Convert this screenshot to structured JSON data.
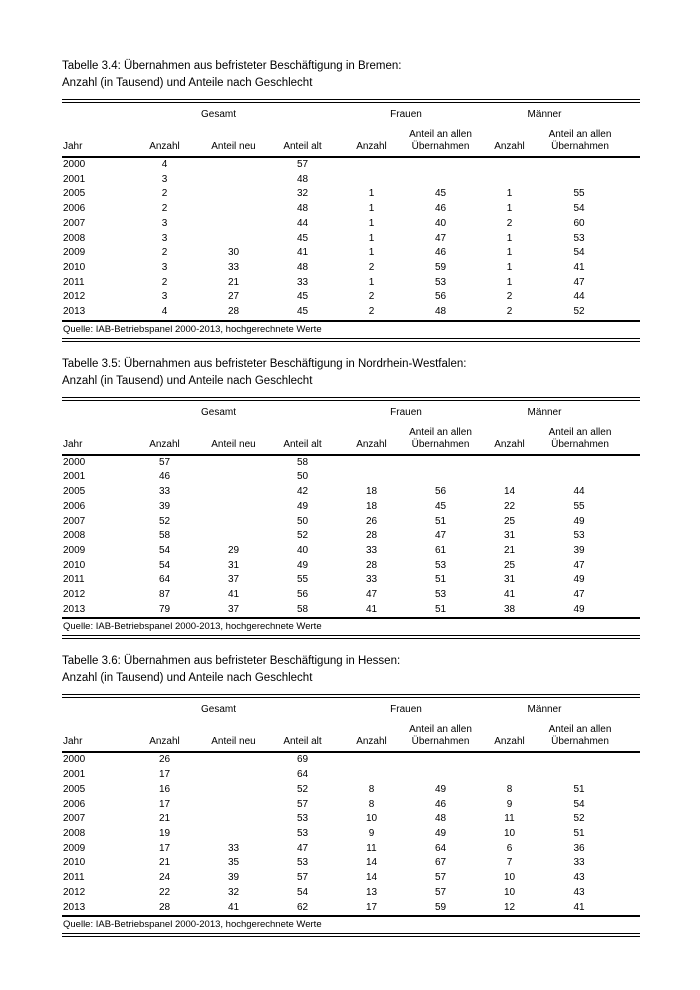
{
  "page": {
    "background": "#ffffff",
    "text_color": "#000000"
  },
  "columns": {
    "group_gesamt": "Gesamt",
    "group_frauen": "Frauen",
    "group_maenner": "Männer",
    "jahr": "Jahr",
    "anzahl": "Anzahl",
    "anteil_neu": "Anteil neu",
    "anteil_alt": "Anteil alt",
    "anteil_allen_line1": "Anteil an allen",
    "anteil_allen_line2": "Übernahmen"
  },
  "tables": [
    {
      "title_line1": "Tabelle 3.4: Übernahmen aus befristeter Beschäftigung in Bremen:",
      "title_line2": "Anzahl (in Tausend) und Anteile nach Geschlecht",
      "source": "Quelle: IAB-Betriebspanel 2000-2013, hochgerechnete Werte",
      "rows": [
        [
          "2000",
          "4",
          "",
          "57",
          "",
          "",
          "",
          ""
        ],
        [
          "2001",
          "3",
          "",
          "48",
          "",
          "",
          "",
          ""
        ],
        [
          "2005",
          "2",
          "",
          "32",
          "1",
          "45",
          "1",
          "55"
        ],
        [
          "2006",
          "2",
          "",
          "48",
          "1",
          "46",
          "1",
          "54"
        ],
        [
          "2007",
          "3",
          "",
          "44",
          "1",
          "40",
          "2",
          "60"
        ],
        [
          "2008",
          "3",
          "",
          "45",
          "1",
          "47",
          "1",
          "53"
        ],
        [
          "2009",
          "2",
          "30",
          "41",
          "1",
          "46",
          "1",
          "54"
        ],
        [
          "2010",
          "3",
          "33",
          "48",
          "2",
          "59",
          "1",
          "41"
        ],
        [
          "2011",
          "2",
          "21",
          "33",
          "1",
          "53",
          "1",
          "47"
        ],
        [
          "2012",
          "3",
          "27",
          "45",
          "2",
          "56",
          "2",
          "44"
        ],
        [
          "2013",
          "4",
          "28",
          "45",
          "2",
          "48",
          "2",
          "52"
        ]
      ]
    },
    {
      "title_line1": "Tabelle 3.5: Übernahmen aus befristeter Beschäftigung in Nordrhein-Westfalen:",
      "title_line2": "Anzahl (in Tausend) und Anteile nach Geschlecht",
      "source": "Quelle: IAB-Betriebspanel 2000-2013, hochgerechnete Werte",
      "rows": [
        [
          "2000",
          "57",
          "",
          "58",
          "",
          "",
          "",
          ""
        ],
        [
          "2001",
          "46",
          "",
          "50",
          "",
          "",
          "",
          ""
        ],
        [
          "2005",
          "33",
          "",
          "42",
          "18",
          "56",
          "14",
          "44"
        ],
        [
          "2006",
          "39",
          "",
          "49",
          "18",
          "45",
          "22",
          "55"
        ],
        [
          "2007",
          "52",
          "",
          "50",
          "26",
          "51",
          "25",
          "49"
        ],
        [
          "2008",
          "58",
          "",
          "52",
          "28",
          "47",
          "31",
          "53"
        ],
        [
          "2009",
          "54",
          "29",
          "40",
          "33",
          "61",
          "21",
          "39"
        ],
        [
          "2010",
          "54",
          "31",
          "49",
          "28",
          "53",
          "25",
          "47"
        ],
        [
          "2011",
          "64",
          "37",
          "55",
          "33",
          "51",
          "31",
          "49"
        ],
        [
          "2012",
          "87",
          "41",
          "56",
          "47",
          "53",
          "41",
          "47"
        ],
        [
          "2013",
          "79",
          "37",
          "58",
          "41",
          "51",
          "38",
          "49"
        ]
      ]
    },
    {
      "title_line1": "Tabelle 3.6: Übernahmen aus befristeter Beschäftigung in Hessen:",
      "title_line2": "Anzahl (in Tausend) und Anteile nach Geschlecht",
      "source": "Quelle: IAB-Betriebspanel 2000-2013, hochgerechnete Werte",
      "rows": [
        [
          "2000",
          "26",
          "",
          "69",
          "",
          "",
          "",
          ""
        ],
        [
          "2001",
          "17",
          "",
          "64",
          "",
          "",
          "",
          ""
        ],
        [
          "2005",
          "16",
          "",
          "52",
          "8",
          "49",
          "8",
          "51"
        ],
        [
          "2006",
          "17",
          "",
          "57",
          "8",
          "46",
          "9",
          "54"
        ],
        [
          "2007",
          "21",
          "",
          "53",
          "10",
          "48",
          "11",
          "52"
        ],
        [
          "2008",
          "19",
          "",
          "53",
          "9",
          "49",
          "10",
          "51"
        ],
        [
          "2009",
          "17",
          "33",
          "47",
          "11",
          "64",
          "6",
          "36"
        ],
        [
          "2010",
          "21",
          "35",
          "53",
          "14",
          "67",
          "7",
          "33"
        ],
        [
          "2011",
          "24",
          "39",
          "57",
          "14",
          "57",
          "10",
          "43"
        ],
        [
          "2012",
          "22",
          "32",
          "54",
          "13",
          "57",
          "10",
          "43"
        ],
        [
          "2013",
          "28",
          "41",
          "62",
          "17",
          "59",
          "12",
          "41"
        ]
      ]
    }
  ]
}
